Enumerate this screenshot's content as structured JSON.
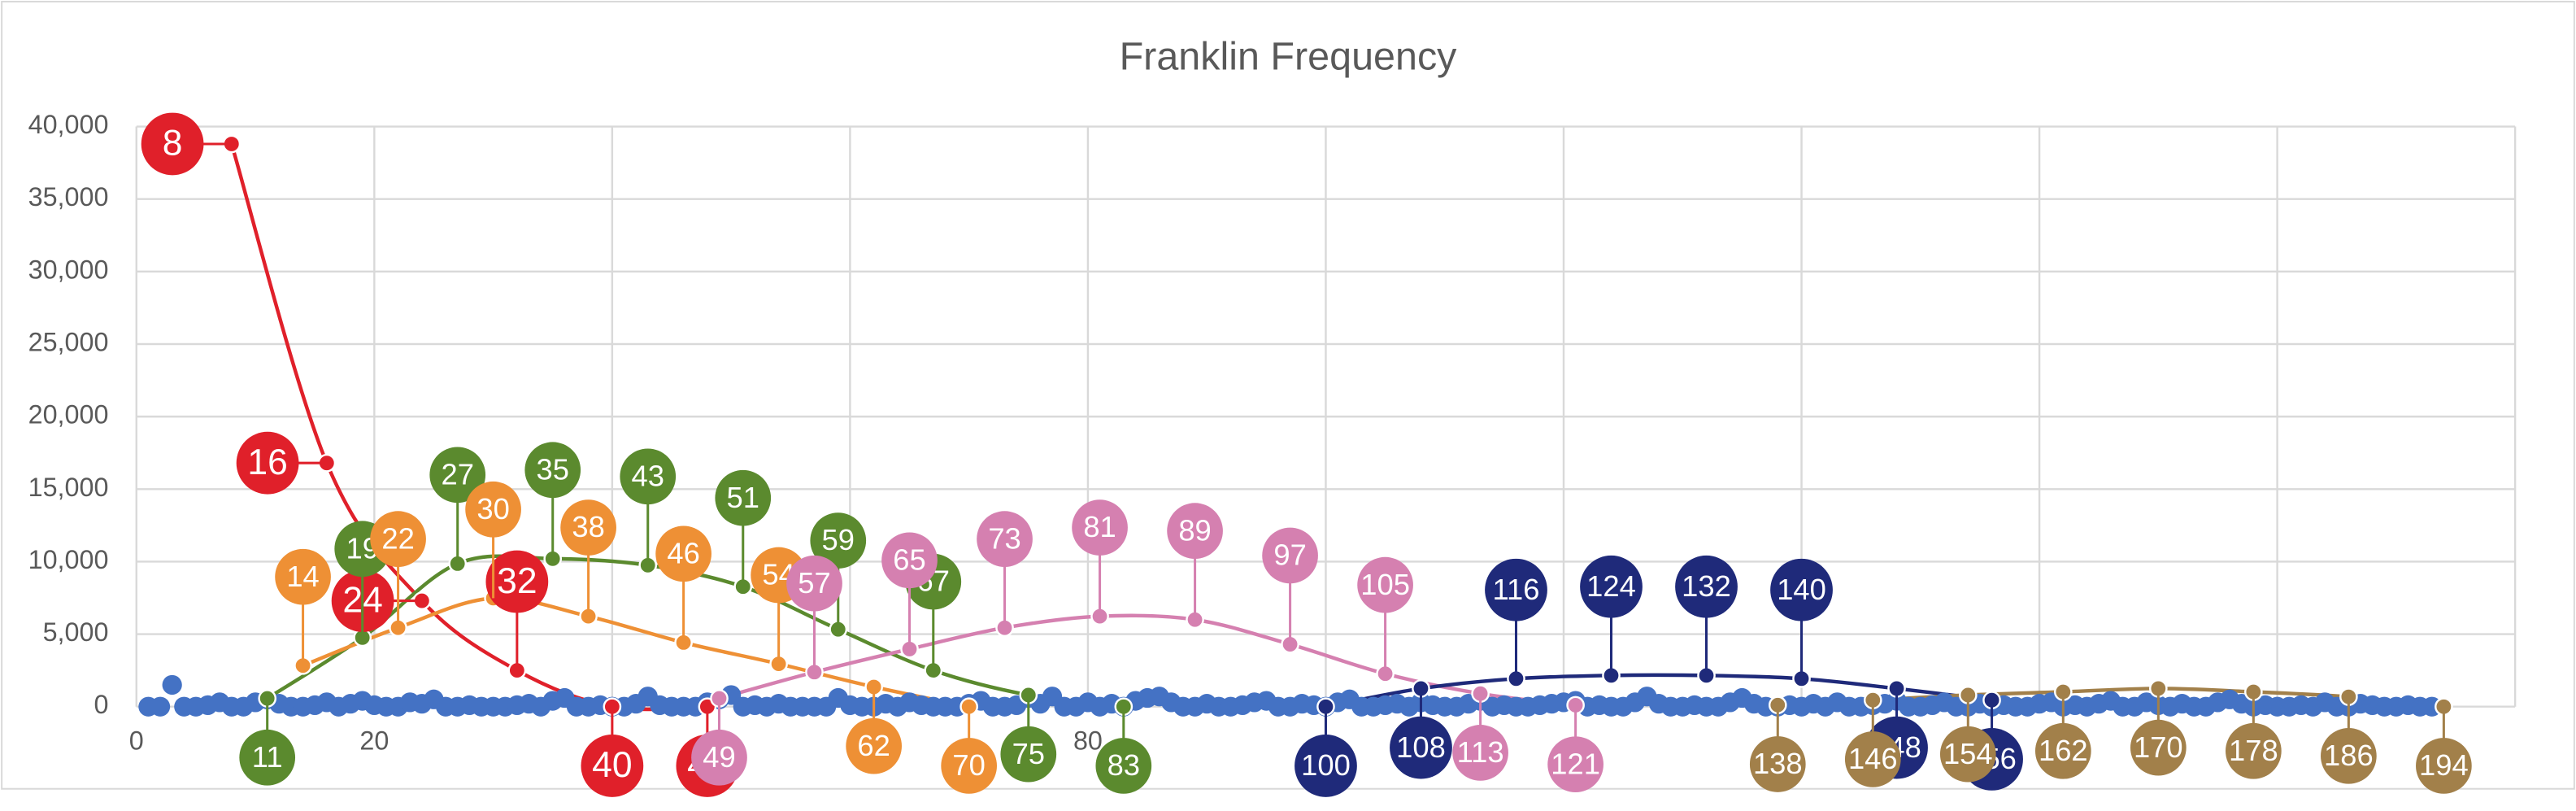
{
  "chart_data": {
    "type": "scatter",
    "title": "Franklin Frequency",
    "xlim": [
      0,
      200
    ],
    "xticks": [
      0,
      20,
      80
    ],
    "xgrid": [
      0,
      20,
      40,
      60,
      80,
      100,
      120,
      140,
      160,
      180,
      200
    ],
    "ylim": [
      0,
      40000
    ],
    "yticks": [
      {
        "value": 0,
        "label": "0"
      },
      {
        "value": 5000,
        "label": "5,000"
      },
      {
        "value": 10000,
        "label": "10,000"
      },
      {
        "value": 15000,
        "label": "15,000"
      },
      {
        "value": 20000,
        "label": "20,000"
      },
      {
        "value": 25000,
        "label": "25,000"
      },
      {
        "value": 30000,
        "label": "30,000"
      },
      {
        "value": 35000,
        "label": "35,000"
      },
      {
        "value": 40000,
        "label": "40,000"
      }
    ],
    "grid": true,
    "series": [
      {
        "color": "#4472c4",
        "line": false,
        "data_labels": false,
        "x": [
          1,
          2,
          3,
          4,
          5,
          6,
          7,
          8,
          9,
          10,
          11,
          12,
          13,
          14,
          15,
          16,
          17,
          18,
          19,
          20,
          21,
          22,
          23,
          24,
          25,
          26,
          27,
          28,
          29,
          30,
          31,
          32,
          33,
          34,
          35,
          36,
          37,
          38,
          39,
          40,
          41,
          42,
          43,
          44,
          45,
          46,
          47,
          48,
          49,
          50,
          51,
          52,
          53,
          54,
          55,
          56,
          57,
          58,
          59,
          60,
          61,
          62,
          63,
          64,
          65,
          66,
          67,
          68,
          69,
          70,
          71,
          72,
          73,
          74,
          75,
          76,
          77,
          78,
          79,
          80,
          81,
          82,
          83,
          84,
          85,
          86,
          87,
          88,
          89,
          90,
          91,
          92,
          93,
          94,
          95,
          96,
          97,
          98,
          99,
          100,
          101,
          102,
          103,
          104,
          105,
          106,
          107,
          108,
          109,
          110,
          111,
          112,
          113,
          114,
          115,
          116,
          117,
          118,
          119,
          120,
          121,
          122,
          123,
          124,
          125,
          126,
          127,
          128,
          129,
          130,
          131,
          132,
          133,
          134,
          135,
          136,
          137,
          138,
          139,
          140,
          141,
          142,
          143,
          144,
          145,
          146,
          147,
          148,
          149,
          150,
          151,
          152,
          153,
          154,
          155,
          156,
          157,
          158,
          159,
          160,
          161,
          162,
          163,
          164,
          165,
          166,
          167,
          168,
          169,
          170,
          171,
          172,
          173,
          174,
          175,
          176,
          177,
          178,
          179,
          180,
          181,
          182,
          183,
          184,
          185,
          186,
          187,
          188,
          189,
          190,
          191,
          192,
          193
        ],
        "values": [
          0,
          0,
          1500,
          0,
          0,
          100,
          300,
          0,
          0,
          300,
          500,
          200,
          0,
          0,
          100,
          300,
          0,
          200,
          400,
          100,
          0,
          0,
          300,
          200,
          500,
          0,
          0,
          100,
          0,
          0,
          0,
          100,
          200,
          0,
          400,
          600,
          0,
          0,
          100,
          0,
          0,
          200,
          700,
          100,
          0,
          0,
          0,
          300,
          500,
          800,
          0,
          100,
          0,
          200,
          0,
          0,
          0,
          0,
          600,
          100,
          0,
          0,
          200,
          0,
          300,
          100,
          0,
          0,
          0,
          200,
          400,
          0,
          0,
          100,
          600,
          200,
          700,
          0,
          0,
          300,
          0,
          200,
          0,
          400,
          600,
          700,
          300,
          0,
          0,
          200,
          0,
          0,
          100,
          300,
          400,
          0,
          0,
          200,
          100,
          0,
          300,
          500,
          0,
          0,
          100,
          200,
          0,
          300,
          100,
          0,
          0,
          200,
          400,
          0,
          100,
          0,
          0,
          100,
          200,
          300,
          400,
          0,
          100,
          0,
          0,
          300,
          700,
          200,
          0,
          0,
          100,
          0,
          0,
          300,
          600,
          200,
          0,
          0,
          100,
          0,
          200,
          0,
          300,
          0,
          0,
          100,
          200,
          400,
          0,
          0,
          100,
          300,
          0,
          0,
          200,
          0,
          100,
          0,
          0,
          200,
          300,
          0,
          100,
          0,
          200,
          400,
          0,
          0,
          300,
          100,
          0,
          200,
          0,
          0,
          300,
          500,
          200,
          0,
          100,
          0,
          0,
          100,
          0,
          300,
          0,
          0,
          200,
          100,
          0,
          0,
          100,
          0,
          0
        ]
      },
      {
        "color": "#e0202a",
        "line": true,
        "data_labels": true,
        "x": [
          8,
          16,
          24,
          32,
          40,
          48
        ],
        "values": [
          38800,
          16800,
          7300,
          2500,
          0,
          0
        ]
      },
      {
        "color": "#5b8a2e",
        "line": true,
        "data_labels": true,
        "x": [
          11,
          19,
          27,
          35,
          43,
          51,
          59,
          67,
          75,
          83
        ],
        "values": [
          570,
          4760,
          9860,
          10200,
          9750,
          8270,
          5330,
          2500,
          800,
          0
        ]
      },
      {
        "color": "#ee9035",
        "line": true,
        "data_labels": true,
        "x": [
          14,
          22,
          30,
          38,
          46,
          54,
          62,
          70
        ],
        "values": [
          2830,
          5440,
          7480,
          6230,
          4420,
          2950,
          1360,
          0
        ]
      },
      {
        "color": "#d580b0",
        "line": true,
        "data_labels": true,
        "x": [
          49,
          57,
          65,
          73,
          81,
          89,
          97,
          105,
          113,
          121
        ],
        "values": [
          570,
          2380,
          3970,
          5440,
          6230,
          6000,
          4300,
          2270,
          900,
          100
        ]
      },
      {
        "color": "#1f2a7a",
        "line": true,
        "data_labels": true,
        "x": [
          100,
          108,
          116,
          124,
          132,
          140,
          148,
          156
        ],
        "values": [
          0,
          1250,
          1930,
          2150,
          2150,
          1930,
          1250,
          450
        ]
      },
      {
        "color": "#a2804a",
        "line": true,
        "data_labels": true,
        "x": [
          138,
          146,
          154,
          162,
          170,
          178,
          186,
          194
        ],
        "values": [
          110,
          450,
          800,
          1020,
          1250,
          1020,
          680,
          0
        ]
      }
    ]
  }
}
